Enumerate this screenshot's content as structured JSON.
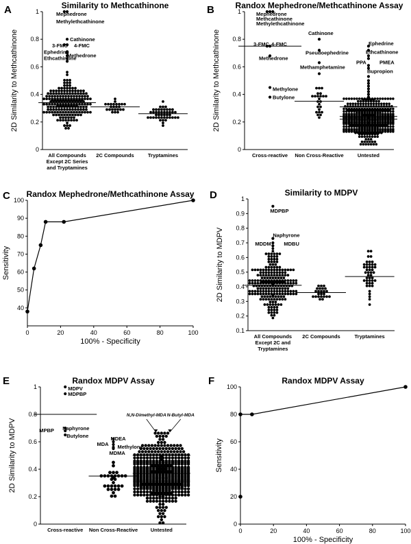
{
  "figure": {
    "type": "multi-panel scientific figure",
    "panels": [
      "A",
      "B",
      "C",
      "D",
      "E",
      "F"
    ]
  },
  "chart_data": [
    {
      "id": "A",
      "letter": "A",
      "type": "scatter",
      "title": "Similarity to Methcathinone",
      "xlabel": "",
      "ylabel": "2D Similarity to Methcathinone",
      "ylim": [
        0,
        1
      ],
      "yticks": [
        0,
        0.2,
        0.4,
        0.6,
        0.8,
        1
      ],
      "categories": [
        {
          "label": [
            "All Compounds",
            "Except 2C Series",
            "and Tryptamines"
          ],
          "median": 0.34,
          "n": 210,
          "range": [
            0.14,
            0.58
          ],
          "center": 0.34,
          "spread": 0.075,
          "cols": 18,
          "dot": 1.9
        },
        {
          "label": [
            "2C Compounds"
          ],
          "median": 0.31,
          "n": 24,
          "range": [
            0.27,
            0.37
          ],
          "center": 0.31,
          "spread": 0.025,
          "cols": 10,
          "dot": 1.9
        },
        {
          "label": [
            "Tryptamines"
          ],
          "median": 0.26,
          "n": 45,
          "range": [
            0.17,
            0.35
          ],
          "center": 0.26,
          "spread": 0.04,
          "cols": 12,
          "dot": 1.9
        }
      ],
      "highlights": [
        {
          "cat": 0,
          "values": [
            1.0,
            1.0,
            0.8,
            0.76,
            0.76,
            0.71,
            0.7,
            0.68,
            0.66,
            0.64
          ]
        }
      ],
      "annotations": [
        {
          "text": "Mephedrone",
          "cat": 0,
          "y": 0.985,
          "dx": -16
        },
        {
          "text": "Methylethcathinone",
          "cat": 0,
          "y": 0.93,
          "dx": -16
        },
        {
          "text": "Cathinone",
          "cat": 0,
          "y": 0.8,
          "dx": 4
        },
        {
          "text": "3-FMC",
          "cat": 0,
          "y": 0.755,
          "dx": -22
        },
        {
          "text": "4-FMC",
          "cat": 0,
          "y": 0.755,
          "dx": 10
        },
        {
          "text": "Ephedrine",
          "cat": 0,
          "y": 0.71,
          "dx": -34
        },
        {
          "text": "Methedrone",
          "cat": 0,
          "y": 0.685,
          "dx": 0
        },
        {
          "text": "Ethcathinone",
          "cat": 0,
          "y": 0.665,
          "dx": -34
        }
      ]
    },
    {
      "id": "B",
      "letter": "B",
      "type": "scatter",
      "title": "Randox Mephedrone/Methcathinone Assay",
      "xlabel": "",
      "ylabel": "2D Similarity to Methcathinone",
      "ylim": [
        0,
        1
      ],
      "yticks": [
        0,
        0.2,
        0.4,
        0.6,
        0.8,
        1
      ],
      "categories": [
        {
          "label": [
            "Cross-reactive"
          ],
          "median": 0.75,
          "n": 0
        },
        {
          "label": [
            "Non Cross-Reactive"
          ],
          "median": 0.35,
          "n": 24,
          "range": [
            0.19,
            0.45
          ],
          "center": 0.33,
          "spread": 0.065,
          "cols": 7,
          "dot": 1.9
        },
        {
          "label": [
            "Untested"
          ],
          "median": 0.24,
          "n": 520,
          "range": [
            0.04,
            0.36
          ],
          "center": 0.22,
          "spread": 0.075,
          "cols": 20,
          "dot": 1.8
        }
      ],
      "medians_extra": [
        {
          "cat": 2,
          "values": [
            0.31,
            0.22
          ]
        }
      ],
      "highlights": [
        {
          "cat": 0,
          "values": [
            1.0,
            1.0,
            1.0,
            0.75,
            0.75,
            0.68,
            0.45,
            0.38
          ]
        },
        {
          "cat": 1,
          "values": [
            0.8,
            0.72,
            0.63,
            0.55
          ]
        },
        {
          "cat": 2,
          "values": [
            0.75,
            0.72,
            0.68,
            0.66,
            0.61,
            0.59,
            0.53,
            0.5,
            0.48,
            0.46,
            0.44,
            0.42,
            0.4,
            0.38
          ]
        }
      ],
      "annotations": [
        {
          "text": "Mephedrone",
          "cat": 0,
          "y": 0.985,
          "dx": -20
        },
        {
          "text": "Methcathinone",
          "cat": 0,
          "y": 0.95,
          "dx": -20
        },
        {
          "text": "Methylethcathinone",
          "cat": 0,
          "y": 0.915,
          "dx": -20
        },
        {
          "text": "3-FMC",
          "cat": 0,
          "y": 0.765,
          "dx": -24
        },
        {
          "text": "4-FMC",
          "cat": 0,
          "y": 0.765,
          "dx": 2
        },
        {
          "text": "Methedrone",
          "cat": 0,
          "y": 0.665,
          "dx": -16
        },
        {
          "text": "Methylone",
          "cat": 0,
          "y": 0.44,
          "dx": 4
        },
        {
          "text": "Butylone",
          "cat": 0,
          "y": 0.38,
          "dx": 4
        },
        {
          "text": "Cathinone",
          "cat": 1,
          "y": 0.845,
          "dx": -16
        },
        {
          "text": "Pseudoephedrine",
          "cat": 1,
          "y": 0.705,
          "dx": -20
        },
        {
          "text": "Methamphetamine",
          "cat": 1,
          "y": 0.6,
          "dx": -28
        },
        {
          "text": "Ephedrine",
          "cat": 2,
          "y": 0.77,
          "dx": 0
        },
        {
          "text": "Ethcathinone",
          "cat": 2,
          "y": 0.71,
          "dx": -4
        },
        {
          "text": "PPA",
          "cat": 2,
          "y": 0.635,
          "dx": -18
        },
        {
          "text": "PMEA",
          "cat": 2,
          "y": 0.635,
          "dx": 16
        },
        {
          "text": "Bupropion",
          "cat": 2,
          "y": 0.57,
          "dx": -2
        }
      ]
    },
    {
      "id": "C",
      "letter": "C",
      "type": "line",
      "title": "Randox Mephedrone/Methcathinone Assay",
      "xlabel": "100% - Specificity",
      "ylabel": "Sensitivity",
      "xlim": [
        0,
        100
      ],
      "ylim": [
        30,
        100
      ],
      "xticks": [
        0,
        20,
        40,
        60,
        80,
        100
      ],
      "yticks": [
        40,
        50,
        60,
        70,
        80,
        90,
        100
      ],
      "x": [
        0,
        4,
        8,
        11,
        22,
        100
      ],
      "y": [
        38,
        62,
        75,
        88,
        88,
        100
      ]
    },
    {
      "id": "D",
      "letter": "D",
      "type": "scatter",
      "title": "Similarity to MDPV",
      "xlabel": "",
      "ylabel": "2D Similarity to MDPV",
      "ylim": [
        0.1,
        1
      ],
      "yticks": [
        0.1,
        0.2,
        0.3,
        0.4,
        0.5,
        0.6,
        0.7,
        0.8,
        0.9,
        1
      ],
      "categories": [
        {
          "label": [
            "All Compounds",
            "Except 2C and",
            "Tryptamines"
          ],
          "median": 0.41,
          "n": 230,
          "range": [
            0.19,
            0.66
          ],
          "center": 0.42,
          "spread": 0.1,
          "cols": 18,
          "dot": 1.9
        },
        {
          "label": [
            "2C Compounds"
          ],
          "median": 0.36,
          "n": 24,
          "range": [
            0.32,
            0.45
          ],
          "center": 0.36,
          "spread": 0.03,
          "cols": 10,
          "dot": 1.9
        },
        {
          "label": [
            "Tryptamines"
          ],
          "median": 0.47,
          "n": 45,
          "range": [
            0.28,
            0.65
          ],
          "center": 0.47,
          "spread": 0.09,
          "cols": 10,
          "dot": 1.9
        }
      ],
      "highlights": [
        {
          "cat": 0,
          "values": [
            0.95,
            0.73,
            0.7,
            0.68
          ]
        }
      ],
      "annotations": [
        {
          "text": "MDPBP",
          "cat": 0,
          "y": 0.92,
          "dx": -4
        },
        {
          "text": "Naphyrone",
          "cat": 0,
          "y": 0.755,
          "dx": 0
        },
        {
          "text": "MDDM",
          "cat": 0,
          "y": 0.695,
          "dx": -26
        },
        {
          "text": "MDBU",
          "cat": 0,
          "y": 0.695,
          "dx": 16
        }
      ]
    },
    {
      "id": "E",
      "letter": "E",
      "type": "scatter",
      "title": "Randox MDPV Assay",
      "xlabel": "",
      "ylabel": "2D Similarity to MDPV",
      "ylim": [
        0,
        1
      ],
      "yticks": [
        0,
        0.2,
        0.4,
        0.6,
        0.8,
        1
      ],
      "categories": [
        {
          "label": [
            "Cross-reactive"
          ],
          "median": 0.8,
          "n": 0
        },
        {
          "label": [
            "Non Cross-Reactive"
          ],
          "median": 0.35,
          "n": 30,
          "range": [
            0.2,
            0.45
          ],
          "center": 0.33,
          "spread": 0.06,
          "cols": 8,
          "dot": 2.4
        },
        {
          "label": [
            "Untested"
          ],
          "median": 0.37,
          "n": 560,
          "range": [
            0.02,
            0.66
          ],
          "center": 0.36,
          "spread": 0.12,
          "cols": 18,
          "dot": 2.2
        }
      ],
      "medians_extra": [
        {
          "cat": 2,
          "values": [
            0.5
          ]
        }
      ],
      "highlights": [
        {
          "cat": 0,
          "values": [
            1.0,
            0.95,
            0.7,
            0.68,
            0.65
          ]
        },
        {
          "cat": 1,
          "values": [
            0.62,
            0.6,
            0.58,
            0.56,
            0.55
          ]
        }
      ],
      "annotations": [
        {
          "text": "MDPV",
          "cat": 0,
          "y": 0.99,
          "dx": 4
        },
        {
          "text": "MDPBP",
          "cat": 0,
          "y": 0.95,
          "dx": 4
        },
        {
          "text": "Naphyrone",
          "cat": 0,
          "y": 0.7,
          "dx": -4
        },
        {
          "text": "MPBP",
          "cat": 0,
          "y": 0.685,
          "dx": -38
        },
        {
          "text": "Butylone",
          "cat": 0,
          "y": 0.645,
          "dx": 2
        },
        {
          "text": "MDEA",
          "cat": 1,
          "y": 0.625,
          "dx": -4
        },
        {
          "text": "MDA",
          "cat": 1,
          "y": 0.585,
          "dx": -24
        },
        {
          "text": "Methylone",
          "cat": 1,
          "y": 0.565,
          "dx": 6
        },
        {
          "text": "MDMA",
          "cat": 1,
          "y": 0.52,
          "dx": -6
        }
      ],
      "arrows": [
        {
          "text": "N,N-Dimethyl-MDA",
          "cat": 2,
          "y": 0.67,
          "label_y": 0.765,
          "dx": -22
        },
        {
          "text": "N-Butyl-MDA",
          "cat": 2,
          "y": 0.67,
          "label_y": 0.765,
          "dx": 28
        }
      ]
    },
    {
      "id": "F",
      "letter": "F",
      "type": "line",
      "title": "Randox MDPV Assay",
      "xlabel": "100% - Specificity",
      "ylabel": "Sensitivity",
      "xlim": [
        0,
        100
      ],
      "ylim": [
        0,
        100
      ],
      "xticks": [
        0,
        20,
        40,
        60,
        80,
        100
      ],
      "yticks": [
        0,
        20,
        40,
        60,
        80,
        100
      ],
      "x": [
        0,
        0,
        7,
        100
      ],
      "y": [
        20,
        80,
        80,
        100
      ]
    }
  ]
}
